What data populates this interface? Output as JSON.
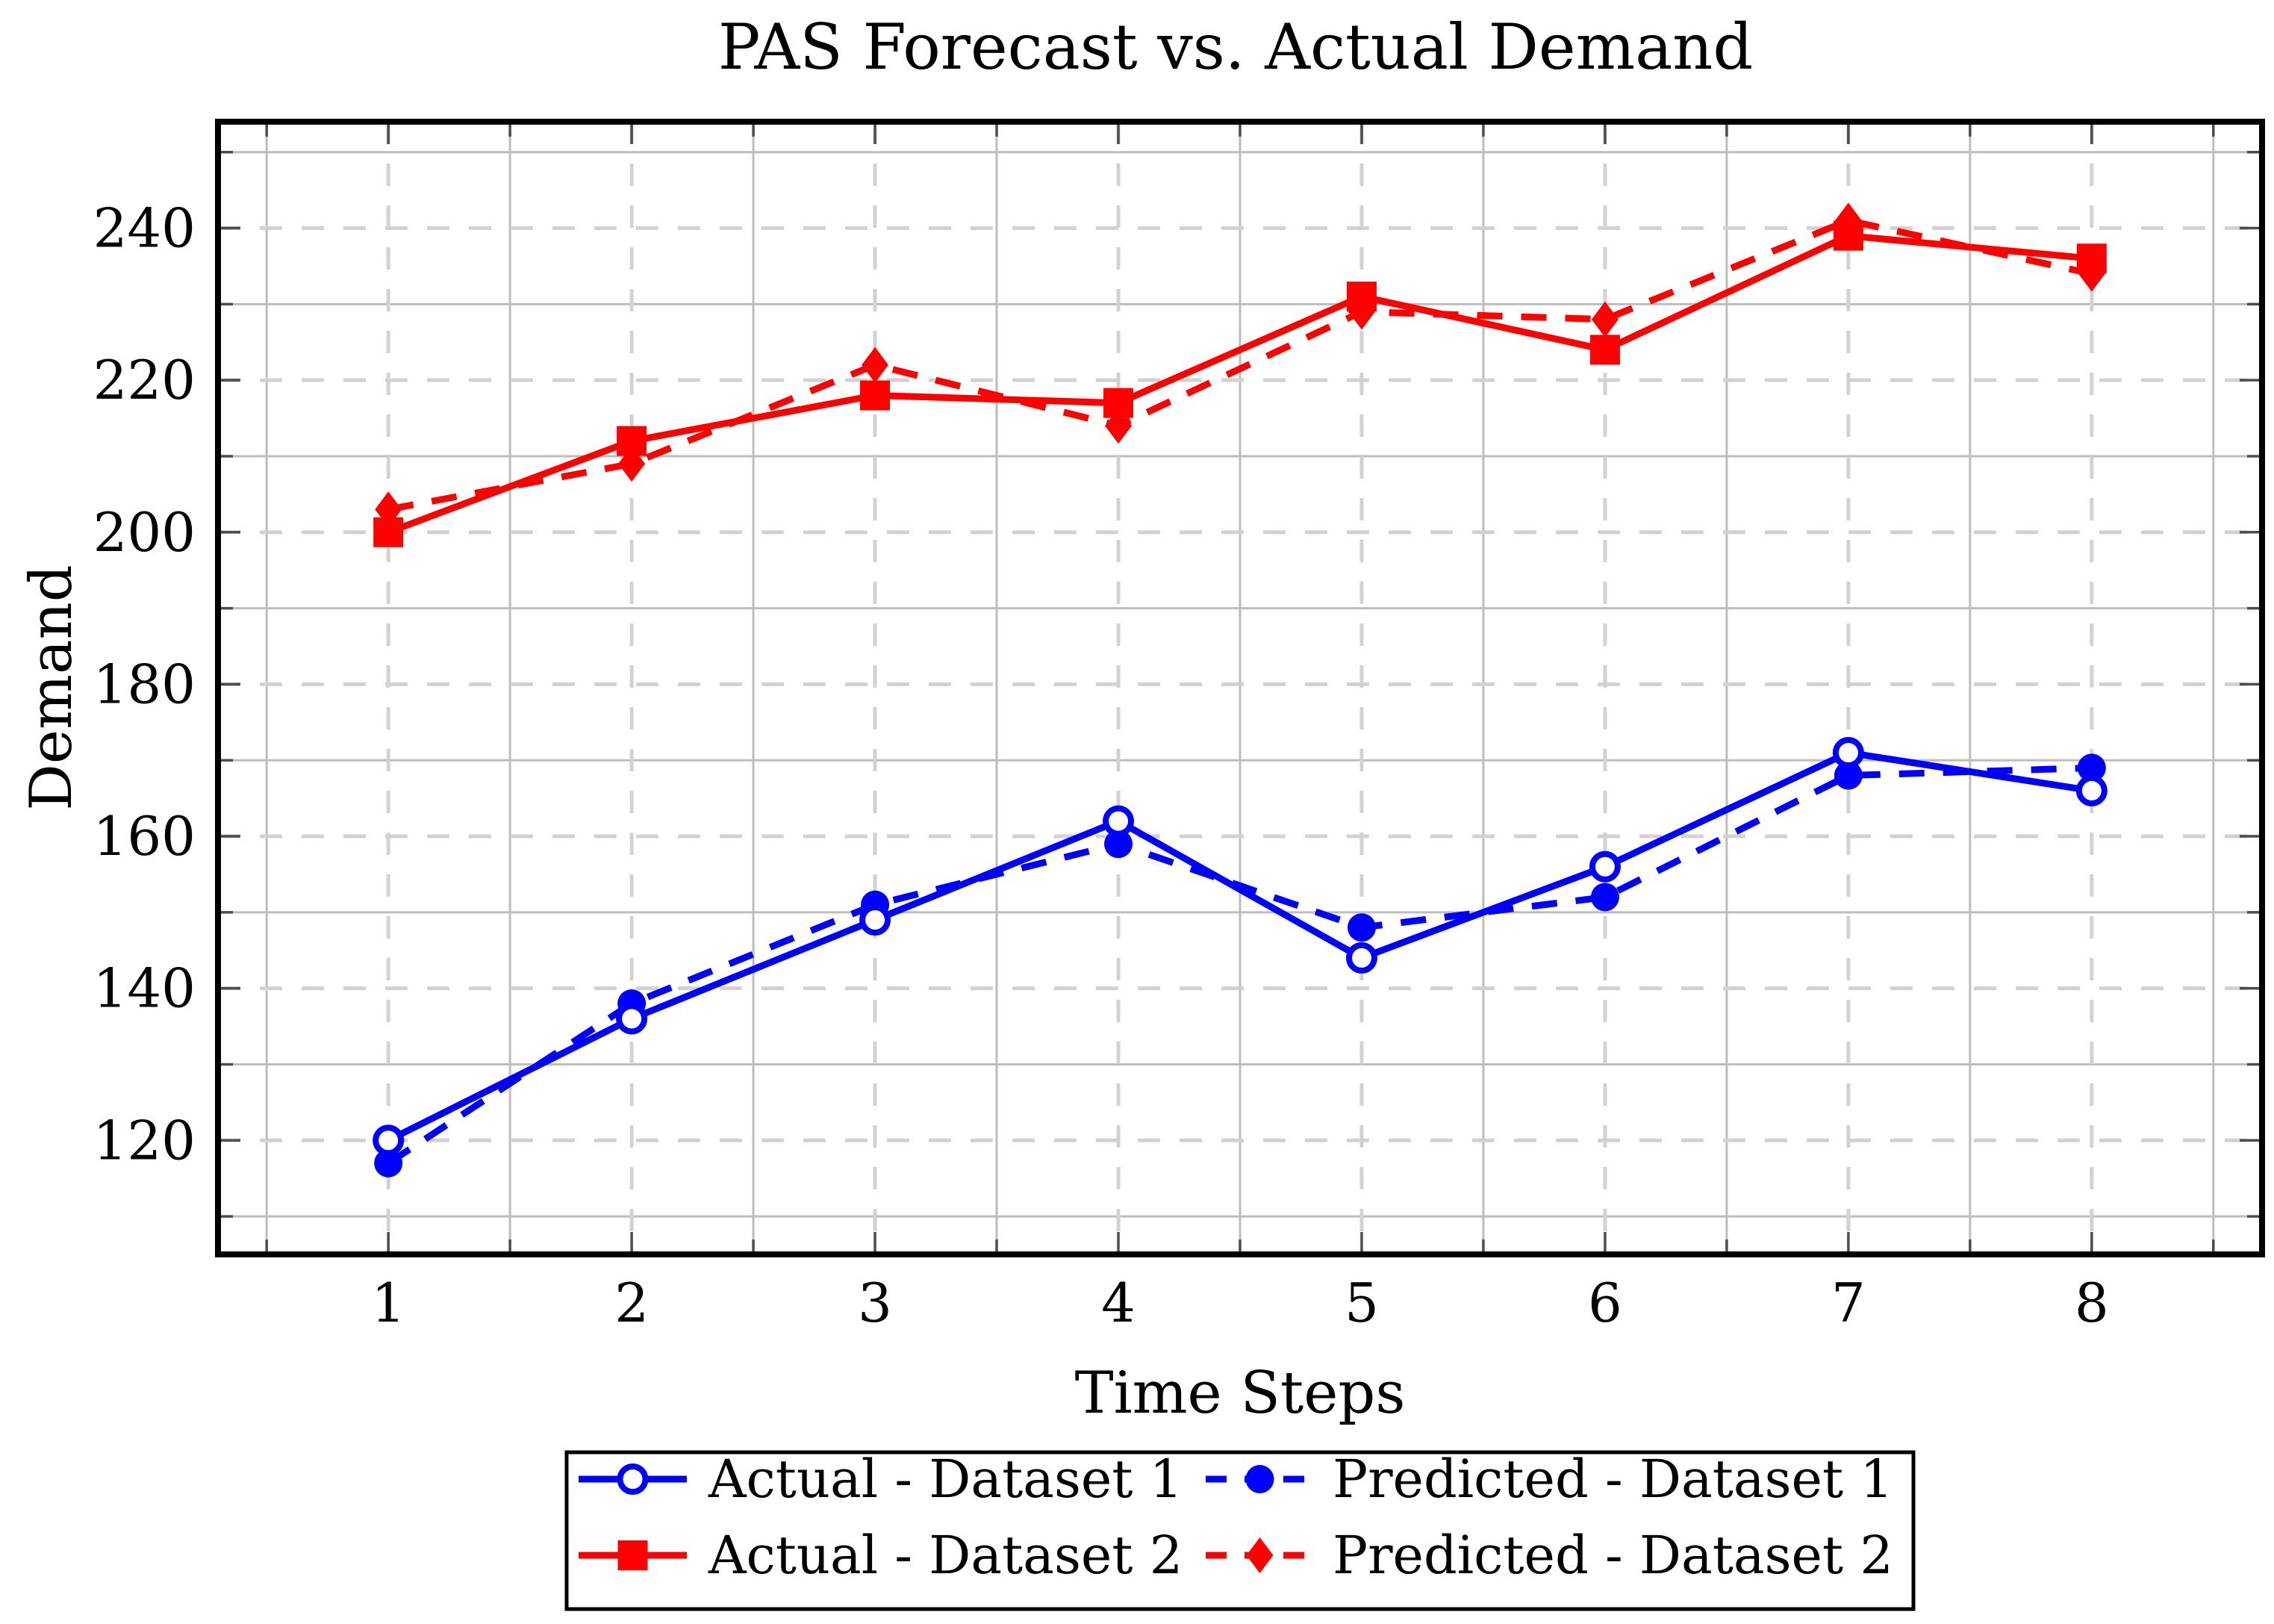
{
  "title": "PAS Forecast vs. Actual Demand",
  "xlabel": "Time Steps",
  "ylabel": "Demand",
  "colors": {
    "dataset1": "#0000ff",
    "dataset2": "#ff0000",
    "major_grid": "#d2d2d2",
    "minor_grid": "#bdbdbd",
    "frame": "#000000",
    "tick": "#4d4d4d"
  },
  "chart_data": {
    "type": "line",
    "x": [
      1,
      2,
      3,
      4,
      5,
      6,
      7,
      8
    ],
    "xticks": [
      1,
      2,
      3,
      4,
      5,
      6,
      7,
      8
    ],
    "yticks": [
      120,
      140,
      160,
      180,
      200,
      220,
      240
    ],
    "xlim": [
      0.3,
      8.7
    ],
    "ylim": [
      105,
      254
    ],
    "grid": "major dashed, minor solid, boxed frame",
    "legend_position": "below plot, 2x2 box",
    "series": [
      {
        "name": "Actual - Dataset 1",
        "color": "#0000ff",
        "style": "solid",
        "marker": "open-circle",
        "values": [
          120,
          136,
          149,
          162,
          144,
          156,
          171,
          166
        ]
      },
      {
        "name": "Predicted - Dataset 1",
        "color": "#0000ff",
        "style": "dashed",
        "marker": "filled-circle",
        "values": [
          117,
          138,
          151,
          159,
          148,
          152,
          168,
          169
        ]
      },
      {
        "name": "Actual - Dataset 2",
        "color": "#ff0000",
        "style": "solid",
        "marker": "filled-square",
        "values": [
          200,
          212,
          218,
          217,
          231,
          224,
          239,
          236
        ]
      },
      {
        "name": "Predicted - Dataset 2",
        "color": "#ff0000",
        "style": "dashed",
        "marker": "filled-diamond",
        "values": [
          203,
          209,
          222,
          214,
          229,
          228,
          241,
          234
        ]
      }
    ]
  }
}
